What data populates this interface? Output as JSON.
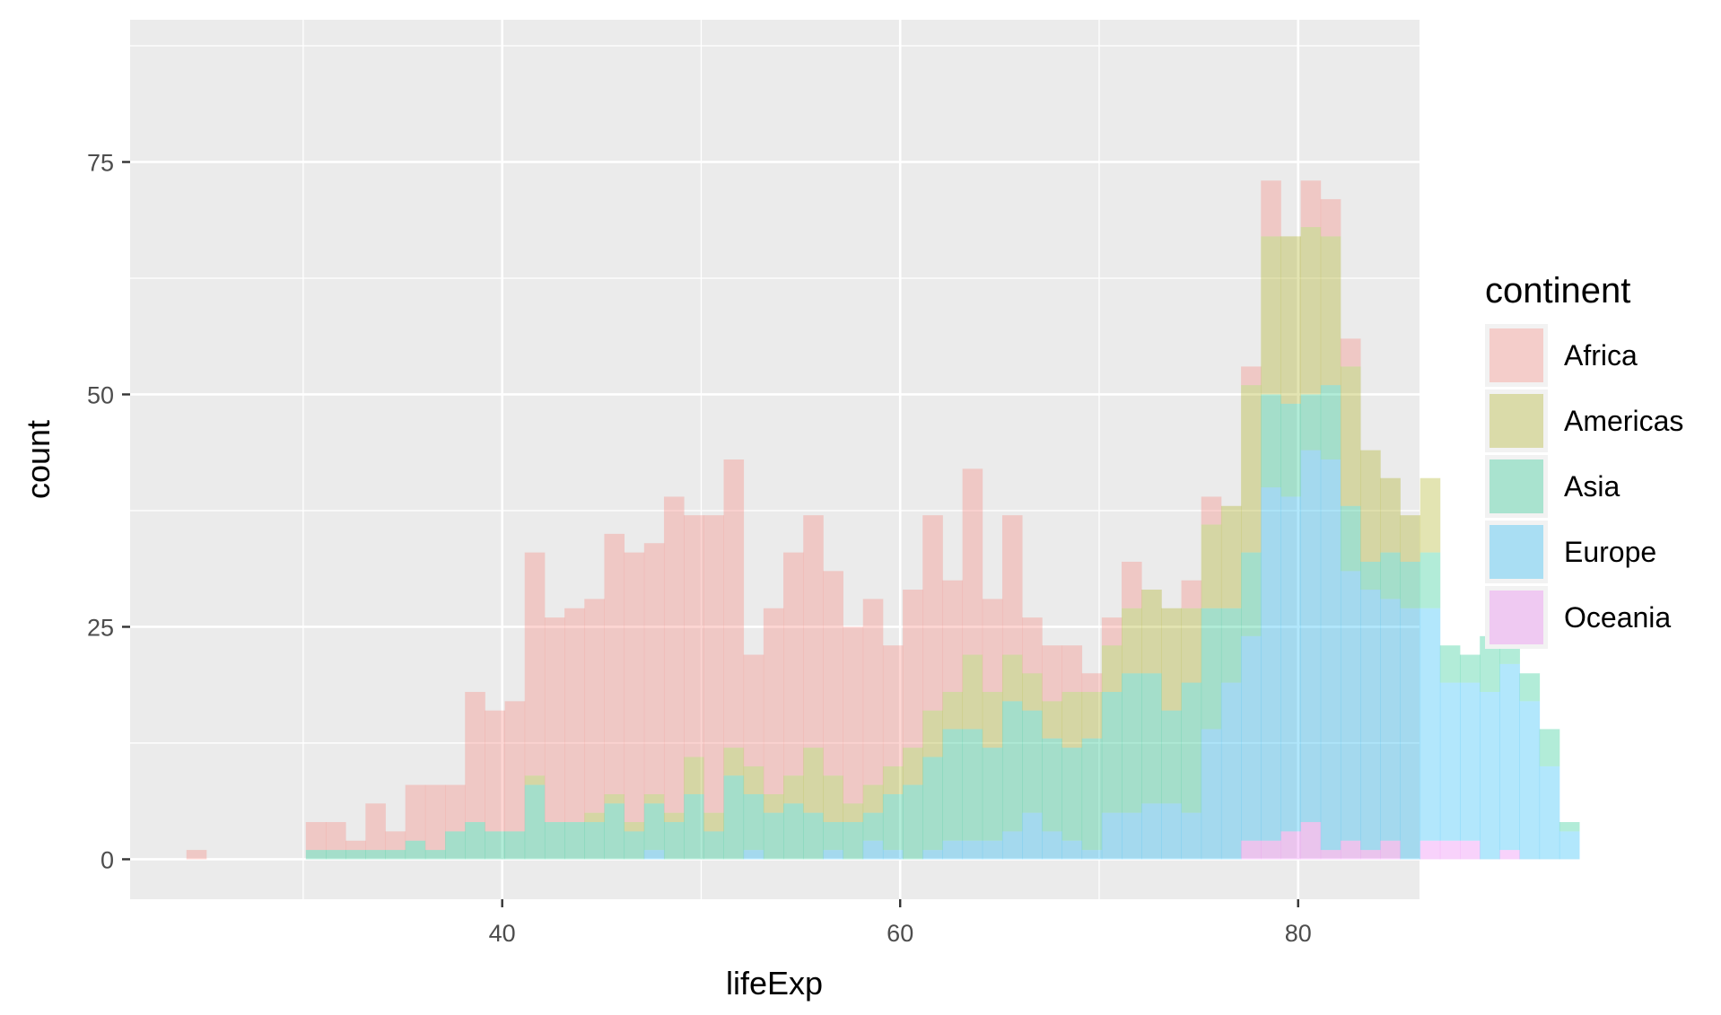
{
  "chart_data": {
    "type": "bar",
    "subtype": "stacked-histogram",
    "title": "",
    "xlabel": "lifeExp",
    "ylabel": "count",
    "xlim": [
      21.3,
      86.1
    ],
    "ylim": [
      -4.3,
      90.3
    ],
    "x_ticks": [
      40,
      60,
      80
    ],
    "x_tick_labels": [
      "40",
      "60",
      "80"
    ],
    "y_ticks": [
      0,
      25,
      50,
      75
    ],
    "y_tick_labels": [
      "0",
      "25",
      "50",
      "75"
    ],
    "grid": true,
    "legend_title": "continent",
    "legend_position": "right",
    "bin_start": 24.13,
    "bin_width": 1.0,
    "stack_order_bottom_to_top": [
      "Oceania",
      "Europe",
      "Asia",
      "Americas",
      "Africa"
    ],
    "series": [
      {
        "name": "Africa",
        "color": "#F8766D",
        "values": [
          1,
          0,
          0,
          0,
          0,
          0,
          3,
          3,
          1,
          5,
          2,
          6,
          7,
          5,
          14,
          13,
          14,
          24,
          22,
          23,
          23,
          28,
          29,
          27,
          34,
          26,
          32,
          31,
          12,
          20,
          24,
          25,
          22,
          19,
          20,
          13,
          17,
          21,
          12,
          20,
          10,
          15,
          6,
          6,
          5,
          2,
          3,
          5,
          0,
          0,
          3,
          3,
          0,
          2,
          6,
          0,
          5,
          4,
          3,
          0,
          0,
          0,
          0,
          0,
          0,
          0,
          0,
          0,
          0,
          0
        ]
      },
      {
        "name": "Americas",
        "color": "#A3A500",
        "values": [
          0,
          0,
          0,
          0,
          0,
          0,
          0,
          0,
          0,
          0,
          0,
          0,
          0,
          0,
          0,
          0,
          0,
          1,
          0,
          0,
          1,
          1,
          1,
          1,
          1,
          4,
          2,
          3,
          3,
          2,
          3,
          7,
          5,
          2,
          3,
          3,
          4,
          5,
          4,
          8,
          6,
          5,
          4,
          4,
          6,
          5,
          5,
          7,
          9,
          11,
          8,
          9,
          11,
          18,
          17,
          18,
          18,
          16,
          15,
          12,
          8,
          5,
          8,
          0,
          0,
          0,
          0,
          0,
          0,
          0
        ]
      },
      {
        "name": "Asia",
        "color": "#00BF7D",
        "values": [
          0,
          0,
          0,
          0,
          0,
          0,
          1,
          1,
          1,
          1,
          1,
          2,
          1,
          3,
          4,
          3,
          3,
          8,
          4,
          4,
          4,
          6,
          3,
          5,
          4,
          7,
          3,
          9,
          6,
          5,
          6,
          5,
          3,
          4,
          3,
          6,
          8,
          10,
          12,
          12,
          10,
          14,
          11,
          10,
          10,
          12,
          13,
          15,
          14,
          10,
          14,
          13,
          8,
          9,
          10,
          10,
          6,
          8,
          7,
          3,
          5,
          5,
          6,
          4,
          3,
          6,
          3,
          3,
          4,
          1
        ]
      },
      {
        "name": "Europe",
        "color": "#00B0F6",
        "values": [
          0,
          0,
          0,
          0,
          0,
          0,
          0,
          0,
          0,
          0,
          0,
          0,
          0,
          0,
          0,
          0,
          0,
          0,
          0,
          0,
          0,
          0,
          0,
          1,
          0,
          0,
          0,
          0,
          1,
          0,
          0,
          0,
          1,
          0,
          2,
          1,
          0,
          1,
          2,
          2,
          2,
          3,
          5,
          3,
          2,
          1,
          5,
          5,
          6,
          6,
          5,
          14,
          19,
          22,
          38,
          36,
          40,
          42,
          29,
          28,
          26,
          27,
          25,
          17,
          17,
          18,
          20,
          17,
          10,
          3
        ]
      },
      {
        "name": "Oceania",
        "color": "#E76BF3",
        "values": [
          0,
          0,
          0,
          0,
          0,
          0,
          0,
          0,
          0,
          0,
          0,
          0,
          0,
          0,
          0,
          0,
          0,
          0,
          0,
          0,
          0,
          0,
          0,
          0,
          0,
          0,
          0,
          0,
          0,
          0,
          0,
          0,
          0,
          0,
          0,
          0,
          0,
          0,
          0,
          0,
          0,
          0,
          0,
          0,
          0,
          0,
          0,
          0,
          0,
          0,
          0,
          0,
          0,
          2,
          2,
          3,
          4,
          1,
          2,
          1,
          2,
          0,
          2,
          2,
          2,
          0,
          1,
          0,
          0,
          0
        ]
      }
    ]
  }
}
